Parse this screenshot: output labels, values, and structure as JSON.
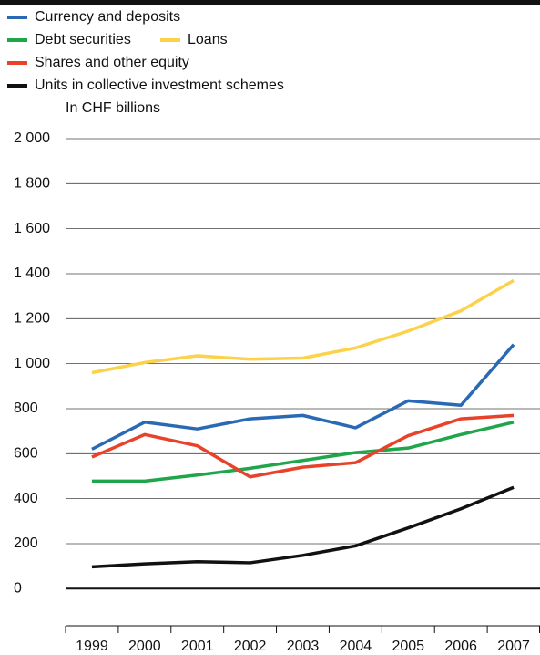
{
  "chart_data": {
    "type": "line",
    "y_axis_label": "In CHF billions",
    "categories": [
      "1999",
      "2000",
      "2001",
      "2002",
      "2003",
      "2004",
      "2005",
      "2006",
      "2007"
    ],
    "series": [
      {
        "name": "Currency and deposits",
        "color": "#2a6ab5",
        "values": [
          620,
          740,
          710,
          755,
          770,
          715,
          835,
          815,
          1085
        ]
      },
      {
        "name": "Debt securities",
        "color": "#1fa64b",
        "values": [
          478,
          478,
          505,
          535,
          570,
          605,
          625,
          685,
          740
        ]
      },
      {
        "name": "Loans",
        "color": "#fcd24a",
        "values": [
          960,
          1005,
          1035,
          1020,
          1025,
          1070,
          1145,
          1235,
          1370
        ]
      },
      {
        "name": "Shares and other equity",
        "color": "#e8432a",
        "values": [
          585,
          685,
          635,
          497,
          540,
          560,
          680,
          755,
          770
        ]
      },
      {
        "name": "Units in collective investment schemes",
        "color": "#111111",
        "values": [
          97,
          110,
          120,
          115,
          148,
          190,
          270,
          355,
          450
        ]
      }
    ],
    "ylim": [
      -165,
      2000
    ],
    "yticks": [
      0,
      200,
      400,
      600,
      800,
      {
        "value": 1000,
        "label": "1 000"
      },
      {
        "value": 1200,
        "label": "1 200"
      },
      {
        "value": 1400,
        "label": "1 400"
      },
      {
        "value": 1600,
        "label": "1 600"
      },
      {
        "value": 1800,
        "label": "1 800"
      },
      {
        "value": 2000,
        "label": "2 000"
      }
    ],
    "grid": true
  }
}
